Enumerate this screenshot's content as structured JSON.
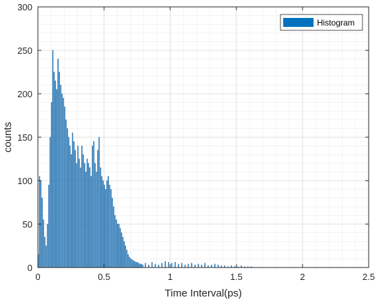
{
  "chart_data": {
    "type": "bar",
    "xlabel": "Time Interval(ps)",
    "ylabel": "counts",
    "xlim": [
      0,
      2.5
    ],
    "ylim": [
      0,
      300
    ],
    "xticks": [
      "0",
      "0.5",
      "1",
      "1.5",
      "2",
      "2.5"
    ],
    "yticks": [
      "0",
      "50",
      "100",
      "150",
      "200",
      "250",
      "300"
    ],
    "grid": "major and minor",
    "legend_position": "top-right",
    "bin_width": 0.005,
    "colors": {
      "bar_fill": "#3a8fd4",
      "bar_edge": "#0f5f9e",
      "legend_patch": "#0072BD"
    },
    "series": [
      {
        "name": "Histogram",
        "x": [
          0.0025,
          0.0125,
          0.0225,
          0.0325,
          0.0425,
          0.0525,
          0.0625,
          0.0725,
          0.0825,
          0.0925,
          0.1025,
          0.1125,
          0.1225,
          0.1325,
          0.1425,
          0.1525,
          0.1625,
          0.1725,
          0.1825,
          0.1925,
          0.2025,
          0.2125,
          0.2225,
          0.2325,
          0.2425,
          0.2525,
          0.2625,
          0.2725,
          0.2825,
          0.2925,
          0.3025,
          0.3125,
          0.3225,
          0.3325,
          0.3425,
          0.3525,
          0.3625,
          0.3725,
          0.3825,
          0.3925,
          0.4025,
          0.4125,
          0.4225,
          0.4325,
          0.4425,
          0.4525,
          0.4625,
          0.4725,
          0.4825,
          0.4925,
          0.5025,
          0.5125,
          0.5225,
          0.5325,
          0.5425,
          0.5525,
          0.5625,
          0.5725,
          0.5825,
          0.5925,
          0.6025,
          0.6125,
          0.6225,
          0.6325,
          0.6425,
          0.6525,
          0.6625,
          0.6725,
          0.6825,
          0.6925,
          0.7025,
          0.7125,
          0.7225,
          0.7325,
          0.7425,
          0.7525,
          0.7625,
          0.7725,
          0.7825,
          0.7925,
          0.8125,
          0.8375,
          0.8625,
          0.8875,
          0.9125,
          0.9375,
          0.9625,
          0.9875,
          1.0125,
          1.0375,
          1.0625,
          1.0875,
          1.1125,
          1.1375,
          1.1625,
          1.1875,
          1.2125,
          1.2375,
          1.2625,
          1.2875,
          1.3125,
          1.3375,
          1.3625,
          1.3875,
          1.4125,
          1.4375,
          1.4625,
          1.4875,
          1.5125,
          1.5375,
          1.5625,
          1.5875,
          1.6125,
          1.6375
        ],
        "values": [
          15,
          105,
          100,
          80,
          55,
          35,
          25,
          50,
          95,
          150,
          190,
          250,
          225,
          215,
          205,
          240,
          225,
          210,
          200,
          195,
          185,
          170,
          160,
          150,
          140,
          130,
          155,
          145,
          135,
          120,
          140,
          125,
          115,
          140,
          130,
          120,
          110,
          125,
          120,
          115,
          105,
          140,
          145,
          120,
          110,
          135,
          150,
          115,
          105,
          100,
          95,
          90,
          100,
          105,
          95,
          90,
          80,
          70,
          60,
          55,
          50,
          50,
          45,
          40,
          35,
          30,
          25,
          20,
          15,
          12,
          10,
          9,
          8,
          7,
          6,
          6,
          5,
          4,
          4,
          3,
          5,
          3,
          6,
          4,
          3,
          5,
          7,
          6,
          5,
          6,
          4,
          5,
          3,
          4,
          5,
          3,
          4,
          3,
          5,
          2,
          3,
          4,
          3,
          2,
          2,
          1,
          2,
          1,
          1,
          2,
          1,
          1,
          1,
          0
        ]
      }
    ]
  }
}
